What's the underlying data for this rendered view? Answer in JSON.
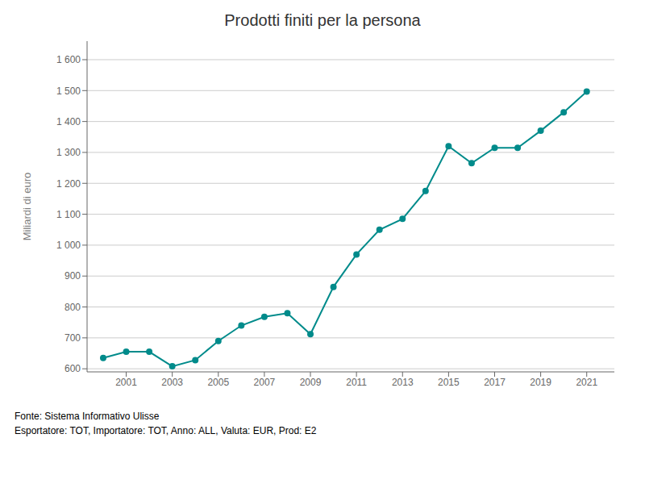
{
  "chart_data": {
    "type": "line",
    "title": "Prodotti finiti per la persona",
    "ylabel": "Miliardi di euro",
    "annotations": [
      "Fonte: Sistema Informativo Ulisse",
      "Esportatore: TOT, Importatore: TOT, Anno: ALL, Valuta: EUR, Prod: E2"
    ],
    "x": [
      2000,
      2001,
      2002,
      2003,
      2004,
      2005,
      2006,
      2007,
      2008,
      2009,
      2010,
      2011,
      2012,
      2013,
      2014,
      2015,
      2016,
      2017,
      2018,
      2019,
      2020,
      2021
    ],
    "values": [
      635,
      655,
      655,
      608,
      628,
      690,
      740,
      768,
      780,
      712,
      865,
      970,
      1050,
      1085,
      1175,
      1320,
      1265,
      1315,
      1315,
      1370,
      1430,
      1497
    ],
    "color": "#008B8B",
    "marker": "circle",
    "xlim": [
      1999.3,
      2022.2
    ],
    "xticks": [
      2001,
      2003,
      2005,
      2007,
      2009,
      2011,
      2013,
      2015,
      2017,
      2019,
      2021
    ],
    "ylim": [
      590,
      1660
    ],
    "yticks": [
      600,
      700,
      800,
      900,
      {
        "value": 1000,
        "label": "1 000"
      },
      {
        "value": 1100,
        "label": "1 100"
      },
      {
        "value": 1200,
        "label": "1 200"
      },
      {
        "value": 1300,
        "label": "1 300"
      },
      {
        "value": 1400,
        "label": "1 400"
      },
      {
        "value": 1500,
        "label": "1 500"
      },
      {
        "value": 1600,
        "label": "1 600"
      }
    ],
    "grid": true
  }
}
